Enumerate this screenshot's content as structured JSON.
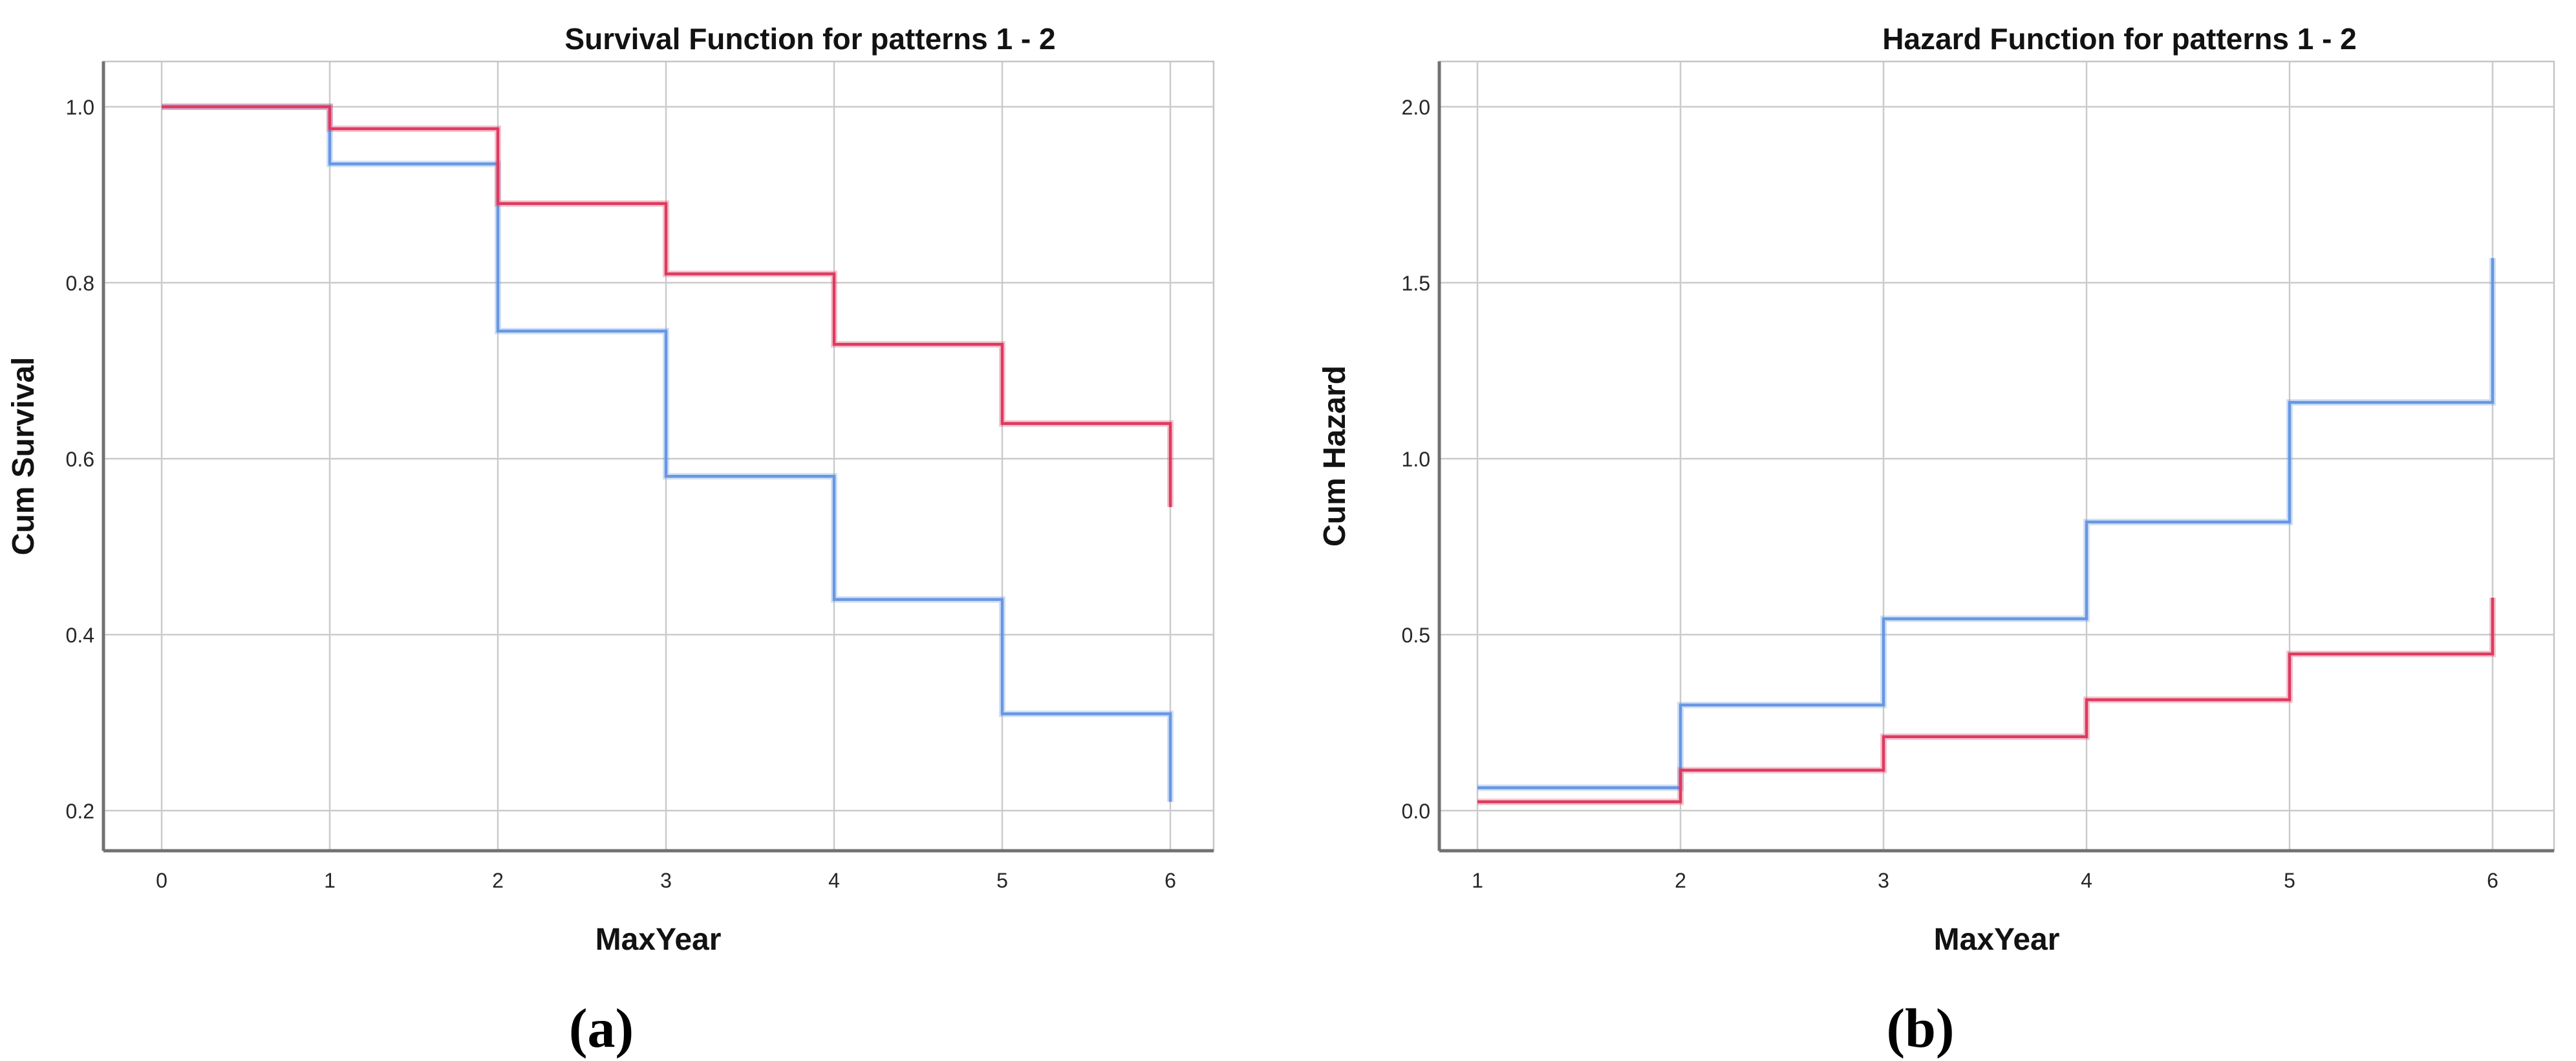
{
  "figure": {
    "panels": [
      {
        "id": "a",
        "caption": "(a)"
      },
      {
        "id": "b",
        "caption": "(b)"
      }
    ]
  },
  "chart_data": [
    {
      "type": "line",
      "subtype": "step",
      "title": "Survival Function for patterns 1 - 2",
      "xlabel": "MaxYear",
      "ylabel": "Cum Survival",
      "x_ticks": [
        0,
        1,
        2,
        3,
        4,
        5,
        6
      ],
      "x_tick_labels": [
        "0",
        "1",
        "2",
        "3",
        "4",
        "5",
        "6"
      ],
      "y_ticks": [
        0.2,
        0.4,
        0.6,
        0.8,
        1.0
      ],
      "y_tick_labels": [
        "0.2",
        "0.4",
        "0.6",
        "0.8",
        "1.0"
      ],
      "xlim": [
        -0.35,
        6.3
      ],
      "ylim": [
        0.155,
        1.05
      ],
      "grid": true,
      "legend_position": "none",
      "series": [
        {
          "id": "blue",
          "color": "#6897E3",
          "step_x": [
            0,
            1,
            2,
            3,
            4,
            5,
            6
          ],
          "levels": [
            1.0,
            0.935,
            0.745,
            0.58,
            0.44,
            0.31
          ],
          "final_value": 0.21
        },
        {
          "id": "red",
          "color": "#DE3A5F",
          "step_x": [
            0,
            1,
            2,
            3,
            4,
            5,
            6
          ],
          "levels": [
            1.0,
            0.975,
            0.89,
            0.81,
            0.73,
            0.64
          ],
          "final_value": 0.545
        }
      ]
    },
    {
      "type": "line",
      "subtype": "step",
      "title": "Hazard Function for patterns 1 - 2",
      "xlabel": "MaxYear",
      "ylabel": "Cum Hazard",
      "x_ticks": [
        1,
        2,
        3,
        4,
        5,
        6
      ],
      "x_tick_labels": [
        "1",
        "2",
        "3",
        "4",
        "5",
        "6"
      ],
      "y_ticks": [
        0.0,
        0.5,
        1.0,
        1.5,
        2.0
      ],
      "y_tick_labels": [
        "0.0",
        "0.5",
        "1.0",
        "1.5",
        "2.0"
      ],
      "xlim": [
        0.8,
        6.3
      ],
      "ylim": [
        -0.11,
        2.13
      ],
      "grid": true,
      "legend_position": "none",
      "series": [
        {
          "id": "blue",
          "color": "#6897E3",
          "step_x": [
            1,
            2,
            3,
            4,
            5,
            6
          ],
          "levels": [
            0.065,
            0.3,
            0.545,
            0.82,
            1.16
          ],
          "final_value": 1.57
        },
        {
          "id": "red",
          "color": "#DE3A5F",
          "step_x": [
            1,
            2,
            3,
            4,
            5,
            6
          ],
          "levels": [
            0.025,
            0.115,
            0.21,
            0.315,
            0.445
          ],
          "final_value": 0.605
        }
      ]
    }
  ]
}
